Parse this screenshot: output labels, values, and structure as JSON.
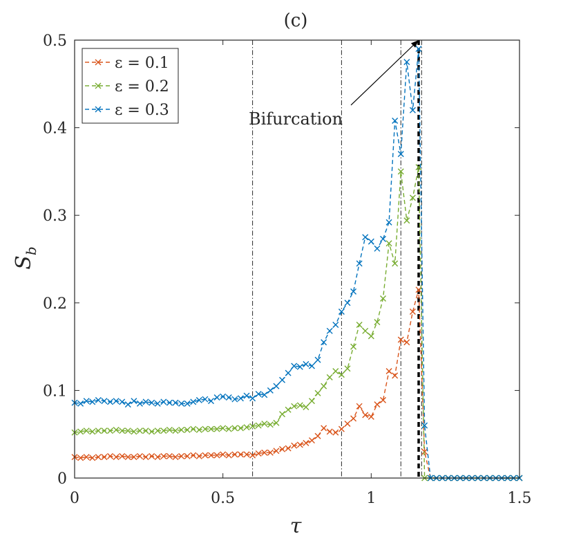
{
  "chart_data": {
    "type": "line",
    "title": "(c)",
    "xlabel": "τ",
    "ylabel_main": "S",
    "ylabel_sub": "b",
    "xlim": [
      0,
      1.5
    ],
    "ylim": [
      0,
      0.5
    ],
    "xticks": [
      0,
      0.5,
      1,
      1.5
    ],
    "xtick_labels": [
      "0",
      "0.5",
      "1",
      "1.5"
    ],
    "yticks": [
      0,
      0.1,
      0.2,
      0.3,
      0.4,
      0.5
    ],
    "ytick_labels": [
      "0",
      "0.1",
      "0.2",
      "0.3",
      "0.4",
      "0.5"
    ],
    "grid": false,
    "legend_position": "top-left",
    "vlines_dashdot": [
      0.6,
      0.9,
      1.1,
      1.17
    ],
    "vline_bifurcation": 1.16,
    "annotation": {
      "text": "Bifurcation",
      "arrow_tip": [
        1.16,
        0.5
      ],
      "text_anchor": [
        0.93,
        0.42
      ]
    },
    "x": [
      0,
      0.02,
      0.04,
      0.06,
      0.08,
      0.1,
      0.12,
      0.14,
      0.16,
      0.18,
      0.2,
      0.22,
      0.24,
      0.26,
      0.28,
      0.3,
      0.32,
      0.34,
      0.36,
      0.38,
      0.4,
      0.42,
      0.44,
      0.46,
      0.48,
      0.5,
      0.52,
      0.54,
      0.56,
      0.58,
      0.6,
      0.62,
      0.64,
      0.66,
      0.68,
      0.7,
      0.72,
      0.74,
      0.76,
      0.78,
      0.8,
      0.82,
      0.84,
      0.86,
      0.88,
      0.9,
      0.92,
      0.94,
      0.96,
      0.98,
      1.0,
      1.02,
      1.04,
      1.06,
      1.08,
      1.1,
      1.12,
      1.14,
      1.16,
      1.18,
      1.2,
      1.22,
      1.24,
      1.26,
      1.28,
      1.3,
      1.32,
      1.34,
      1.36,
      1.38,
      1.4,
      1.42,
      1.44,
      1.46,
      1.48,
      1.5
    ],
    "series": [
      {
        "name": "ε = 0.1",
        "color": "#d95319",
        "values": [
          0.024,
          0.023,
          0.024,
          0.023,
          0.024,
          0.024,
          0.025,
          0.024,
          0.025,
          0.024,
          0.024,
          0.025,
          0.024,
          0.025,
          0.024,
          0.025,
          0.025,
          0.024,
          0.025,
          0.025,
          0.026,
          0.025,
          0.026,
          0.026,
          0.026,
          0.027,
          0.026,
          0.027,
          0.027,
          0.027,
          0.026,
          0.028,
          0.029,
          0.029,
          0.031,
          0.033,
          0.034,
          0.037,
          0.038,
          0.04,
          0.043,
          0.048,
          0.057,
          0.053,
          0.052,
          0.056,
          0.062,
          0.068,
          0.082,
          0.072,
          0.07,
          0.084,
          0.089,
          0.122,
          0.117,
          0.158,
          0.155,
          0.19,
          0.215,
          0.03,
          0.0,
          0.0,
          0.0,
          0.0,
          0.0,
          0.0,
          0.0,
          0.0,
          0.0,
          0.0,
          0.0,
          0.0,
          0.0,
          0.0,
          0.0,
          0.0
        ]
      },
      {
        "name": "ε = 0.2",
        "color": "#77ac30",
        "values": [
          0.052,
          0.053,
          0.054,
          0.053,
          0.054,
          0.054,
          0.054,
          0.055,
          0.054,
          0.054,
          0.053,
          0.054,
          0.054,
          0.053,
          0.054,
          0.054,
          0.055,
          0.054,
          0.055,
          0.055,
          0.056,
          0.055,
          0.056,
          0.056,
          0.056,
          0.057,
          0.056,
          0.057,
          0.057,
          0.058,
          0.059,
          0.06,
          0.062,
          0.061,
          0.063,
          0.073,
          0.078,
          0.082,
          0.083,
          0.081,
          0.088,
          0.097,
          0.105,
          0.115,
          0.122,
          0.118,
          0.125,
          0.15,
          0.175,
          0.168,
          0.162,
          0.178,
          0.205,
          0.268,
          0.245,
          0.35,
          0.294,
          0.32,
          0.355,
          0.0,
          0.0,
          0.0,
          0.0,
          0.0,
          0.0,
          0.0,
          0.0,
          0.0,
          0.0,
          0.0,
          0.0,
          0.0,
          0.0,
          0.0,
          0.0,
          0.0
        ]
      },
      {
        "name": "ε = 0.3",
        "color": "#0072bd",
        "values": [
          0.086,
          0.085,
          0.088,
          0.087,
          0.089,
          0.088,
          0.087,
          0.088,
          0.087,
          0.084,
          0.088,
          0.085,
          0.087,
          0.086,
          0.085,
          0.087,
          0.086,
          0.086,
          0.085,
          0.085,
          0.087,
          0.089,
          0.09,
          0.088,
          0.092,
          0.093,
          0.092,
          0.09,
          0.091,
          0.094,
          0.091,
          0.096,
          0.095,
          0.1,
          0.105,
          0.112,
          0.12,
          0.128,
          0.127,
          0.13,
          0.128,
          0.135,
          0.155,
          0.168,
          0.175,
          0.19,
          0.2,
          0.213,
          0.245,
          0.275,
          0.27,
          0.262,
          0.273,
          0.292,
          0.408,
          0.37,
          0.475,
          0.42,
          0.49,
          0.06,
          0.0,
          0.0,
          0.0,
          0.0,
          0.0,
          0.0,
          0.0,
          0.0,
          0.0,
          0.0,
          0.0,
          0.0,
          0.0,
          0.0,
          0.0,
          0.0
        ]
      }
    ]
  }
}
